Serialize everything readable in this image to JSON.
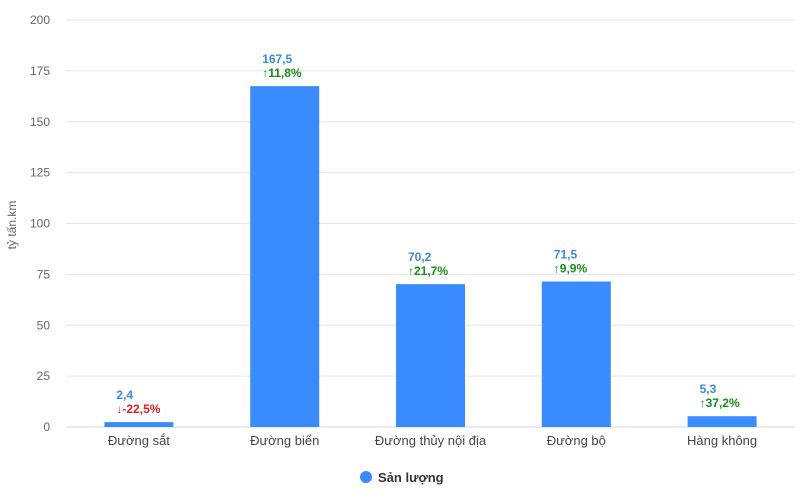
{
  "chart_data": {
    "type": "bar",
    "ylabel": "tỷ tấn.km",
    "ylim": [
      0,
      200
    ],
    "yticks": [
      0,
      25,
      50,
      75,
      100,
      125,
      150,
      175,
      200
    ],
    "categories": [
      "Đường sắt",
      "Đường biển",
      "Đường thủy nội địa",
      "Đường bộ",
      "Hàng không"
    ],
    "series": [
      {
        "name": "Sản lượng",
        "color": "#3a8bff",
        "values": [
          2.4,
          167.5,
          70.2,
          71.5,
          5.3
        ],
        "value_labels": [
          "2,4",
          "167,5",
          "70,2",
          "71,5",
          "5,3"
        ],
        "change_labels": [
          "↓-22,5%",
          "↑11,8%",
          "↑21,7%",
          "↑9,9%",
          "↑37,2%"
        ],
        "change_direction": [
          "down",
          "up",
          "up",
          "up",
          "up"
        ]
      }
    ],
    "colors": {
      "up": "#1a8a1a",
      "down": "#e02020",
      "value_label": "#3a8bd6"
    },
    "grid": true,
    "legend": "bottom-center"
  }
}
